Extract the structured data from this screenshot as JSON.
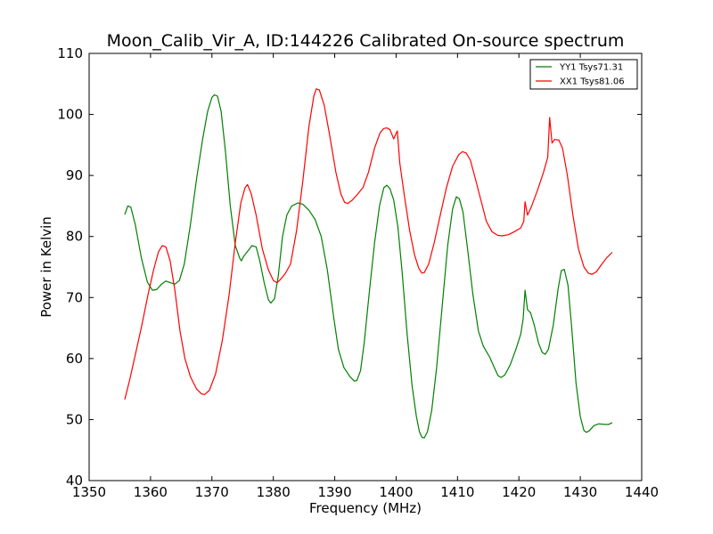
{
  "chart_data": {
    "type": "line",
    "title": "Moon_Calib_Vir_A, ID:144226 Calibrated On-source spectrum",
    "xlabel": "Frequency (MHz)",
    "ylabel": "Power in Kelvin",
    "xlim": [
      1350,
      1440
    ],
    "ylim": [
      40,
      110
    ],
    "xticks": [
      1350,
      1360,
      1370,
      1380,
      1390,
      1400,
      1410,
      1420,
      1430,
      1440
    ],
    "yticks": [
      40,
      50,
      60,
      70,
      80,
      90,
      100,
      110
    ],
    "grid": false,
    "legend_position": "top-right",
    "series": [
      {
        "name": "YY1 Tsys71.31",
        "color": "#008000",
        "points": [
          [
            1355.8,
            83.6
          ],
          [
            1356.3,
            85.0
          ],
          [
            1356.8,
            84.8
          ],
          [
            1357.5,
            82.0
          ],
          [
            1358.5,
            76.5
          ],
          [
            1359.5,
            72.5
          ],
          [
            1360.3,
            71.2
          ],
          [
            1361.0,
            71.3
          ],
          [
            1361.8,
            72.2
          ],
          [
            1362.5,
            72.7
          ],
          [
            1363.3,
            72.4
          ],
          [
            1364.0,
            72.2
          ],
          [
            1364.7,
            72.8
          ],
          [
            1365.5,
            75.5
          ],
          [
            1366.5,
            82.0
          ],
          [
            1367.5,
            89.5
          ],
          [
            1368.5,
            96.0
          ],
          [
            1369.3,
            100.5
          ],
          [
            1370.0,
            102.8
          ],
          [
            1370.4,
            103.2
          ],
          [
            1370.9,
            103.0
          ],
          [
            1371.5,
            100.5
          ],
          [
            1372.2,
            94.0
          ],
          [
            1373.0,
            85.0
          ],
          [
            1373.8,
            78.5
          ],
          [
            1374.5,
            76.5
          ],
          [
            1374.8,
            76.0
          ],
          [
            1375.2,
            76.8
          ],
          [
            1376.0,
            77.8
          ],
          [
            1376.5,
            78.5
          ],
          [
            1377.2,
            78.3
          ],
          [
            1377.8,
            76.0
          ],
          [
            1378.5,
            72.5
          ],
          [
            1379.2,
            69.6
          ],
          [
            1379.6,
            69.1
          ],
          [
            1380.2,
            69.8
          ],
          [
            1380.8,
            73.5
          ],
          [
            1381.5,
            80.0
          ],
          [
            1382.2,
            83.5
          ],
          [
            1383.0,
            85.0
          ],
          [
            1384.0,
            85.5
          ],
          [
            1384.8,
            85.3
          ],
          [
            1385.8,
            84.3
          ],
          [
            1386.8,
            82.8
          ],
          [
            1387.8,
            80.0
          ],
          [
            1388.8,
            74.5
          ],
          [
            1389.8,
            67.0
          ],
          [
            1390.6,
            61.5
          ],
          [
            1391.5,
            58.5
          ],
          [
            1392.5,
            57.0
          ],
          [
            1393.2,
            56.3
          ],
          [
            1393.6,
            56.4
          ],
          [
            1394.2,
            58.0
          ],
          [
            1394.8,
            62.5
          ],
          [
            1395.6,
            70.5
          ],
          [
            1396.5,
            79.0
          ],
          [
            1397.3,
            85.0
          ],
          [
            1398.0,
            88.0
          ],
          [
            1398.5,
            88.4
          ],
          [
            1399.0,
            87.8
          ],
          [
            1399.6,
            86.0
          ],
          [
            1400.3,
            81.5
          ],
          [
            1401.0,
            74.0
          ],
          [
            1401.8,
            64.0
          ],
          [
            1402.6,
            55.5
          ],
          [
            1403.3,
            50.5
          ],
          [
            1403.8,
            48.0
          ],
          [
            1404.2,
            47.1
          ],
          [
            1404.6,
            47.0
          ],
          [
            1405.1,
            48.0
          ],
          [
            1405.8,
            51.5
          ],
          [
            1406.6,
            58.5
          ],
          [
            1407.5,
            68.5
          ],
          [
            1408.4,
            78.5
          ],
          [
            1409.2,
            84.5
          ],
          [
            1409.8,
            86.5
          ],
          [
            1410.3,
            86.2
          ],
          [
            1410.9,
            84.0
          ],
          [
            1411.7,
            77.5
          ],
          [
            1412.5,
            70.5
          ],
          [
            1413.4,
            64.5
          ],
          [
            1414.2,
            62.0
          ],
          [
            1415.2,
            60.3
          ],
          [
            1416.0,
            58.5
          ],
          [
            1416.6,
            57.2
          ],
          [
            1417.1,
            56.9
          ],
          [
            1417.7,
            57.3
          ],
          [
            1418.6,
            59.0
          ],
          [
            1419.5,
            61.5
          ],
          [
            1420.3,
            64.0
          ],
          [
            1420.7,
            66.5
          ],
          [
            1421.0,
            71.2
          ],
          [
            1421.4,
            68.0
          ],
          [
            1421.9,
            67.5
          ],
          [
            1422.5,
            65.5
          ],
          [
            1423.2,
            62.5
          ],
          [
            1423.8,
            61.0
          ],
          [
            1424.3,
            60.7
          ],
          [
            1424.8,
            61.5
          ],
          [
            1425.6,
            65.5
          ],
          [
            1426.4,
            71.5
          ],
          [
            1426.9,
            74.4
          ],
          [
            1427.4,
            74.6
          ],
          [
            1428.0,
            72.0
          ],
          [
            1428.6,
            65.0
          ],
          [
            1429.3,
            56.0
          ],
          [
            1430.0,
            50.5
          ],
          [
            1430.6,
            48.2
          ],
          [
            1431.0,
            47.9
          ],
          [
            1431.5,
            48.2
          ],
          [
            1432.2,
            49.0
          ],
          [
            1433.0,
            49.3
          ],
          [
            1434.0,
            49.2
          ],
          [
            1434.6,
            49.2
          ],
          [
            1435.2,
            49.5
          ]
        ]
      },
      {
        "name": "XX1 Tsys81.06",
        "color": "#ff0000",
        "points": [
          [
            1355.8,
            53.3
          ],
          [
            1356.6,
            56.5
          ],
          [
            1357.6,
            61.0
          ],
          [
            1358.6,
            65.5
          ],
          [
            1359.6,
            70.5
          ],
          [
            1360.5,
            74.5
          ],
          [
            1361.3,
            77.5
          ],
          [
            1361.9,
            78.5
          ],
          [
            1362.5,
            78.3
          ],
          [
            1363.2,
            76.0
          ],
          [
            1364.0,
            71.0
          ],
          [
            1364.8,
            64.5
          ],
          [
            1365.6,
            60.0
          ],
          [
            1366.5,
            57.0
          ],
          [
            1367.5,
            55.0
          ],
          [
            1368.3,
            54.2
          ],
          [
            1368.8,
            54.1
          ],
          [
            1369.6,
            54.8
          ],
          [
            1370.6,
            57.5
          ],
          [
            1371.7,
            63.0
          ],
          [
            1372.8,
            70.5
          ],
          [
            1373.8,
            79.0
          ],
          [
            1374.7,
            85.5
          ],
          [
            1375.4,
            88.0
          ],
          [
            1375.8,
            88.5
          ],
          [
            1376.4,
            87.0
          ],
          [
            1377.2,
            83.5
          ],
          [
            1378.2,
            78.0
          ],
          [
            1379.2,
            74.5
          ],
          [
            1380.0,
            72.8
          ],
          [
            1380.6,
            72.4
          ],
          [
            1381.2,
            73.0
          ],
          [
            1382.0,
            74.0
          ],
          [
            1382.8,
            75.5
          ],
          [
            1383.8,
            81.0
          ],
          [
            1384.8,
            89.0
          ],
          [
            1385.8,
            98.0
          ],
          [
            1386.6,
            103.0
          ],
          [
            1387.0,
            104.2
          ],
          [
            1387.5,
            104.0
          ],
          [
            1388.3,
            101.5
          ],
          [
            1389.2,
            96.5
          ],
          [
            1390.2,
            90.5
          ],
          [
            1391.0,
            87.0
          ],
          [
            1391.6,
            85.6
          ],
          [
            1392.1,
            85.4
          ],
          [
            1392.8,
            85.9
          ],
          [
            1393.6,
            86.8
          ],
          [
            1394.6,
            88.0
          ],
          [
            1395.5,
            90.5
          ],
          [
            1396.5,
            94.5
          ],
          [
            1397.4,
            97.0
          ],
          [
            1398.0,
            97.7
          ],
          [
            1398.5,
            97.8
          ],
          [
            1399.0,
            97.5
          ],
          [
            1399.6,
            96.0
          ],
          [
            1400.2,
            97.3
          ],
          [
            1400.6,
            92.0
          ],
          [
            1401.3,
            87.0
          ],
          [
            1402.2,
            81.0
          ],
          [
            1403.0,
            77.0
          ],
          [
            1403.7,
            74.8
          ],
          [
            1404.2,
            74.0
          ],
          [
            1404.6,
            74.1
          ],
          [
            1405.3,
            75.5
          ],
          [
            1406.2,
            79.0
          ],
          [
            1407.2,
            83.5
          ],
          [
            1408.2,
            88.0
          ],
          [
            1409.2,
            91.5
          ],
          [
            1410.2,
            93.4
          ],
          [
            1410.8,
            93.9
          ],
          [
            1411.4,
            93.7
          ],
          [
            1412.1,
            92.5
          ],
          [
            1412.9,
            89.5
          ],
          [
            1413.8,
            86.0
          ],
          [
            1414.7,
            82.5
          ],
          [
            1415.6,
            80.8
          ],
          [
            1416.5,
            80.2
          ],
          [
            1417.3,
            80.1
          ],
          [
            1418.3,
            80.3
          ],
          [
            1419.3,
            80.8
          ],
          [
            1420.3,
            81.4
          ],
          [
            1420.8,
            82.5
          ],
          [
            1421.0,
            85.7
          ],
          [
            1421.4,
            83.5
          ],
          [
            1422.0,
            84.8
          ],
          [
            1423.0,
            87.5
          ],
          [
            1424.0,
            90.5
          ],
          [
            1424.7,
            93.0
          ],
          [
            1425.0,
            99.5
          ],
          [
            1425.4,
            95.3
          ],
          [
            1425.8,
            95.9
          ],
          [
            1426.5,
            95.8
          ],
          [
            1427.1,
            94.5
          ],
          [
            1427.9,
            90.0
          ],
          [
            1428.8,
            83.5
          ],
          [
            1429.7,
            78.0
          ],
          [
            1430.6,
            75.0
          ],
          [
            1431.3,
            74.0
          ],
          [
            1431.9,
            73.8
          ],
          [
            1432.6,
            74.2
          ],
          [
            1433.4,
            75.3
          ],
          [
            1434.3,
            76.5
          ],
          [
            1435.2,
            77.4
          ]
        ]
      }
    ]
  }
}
